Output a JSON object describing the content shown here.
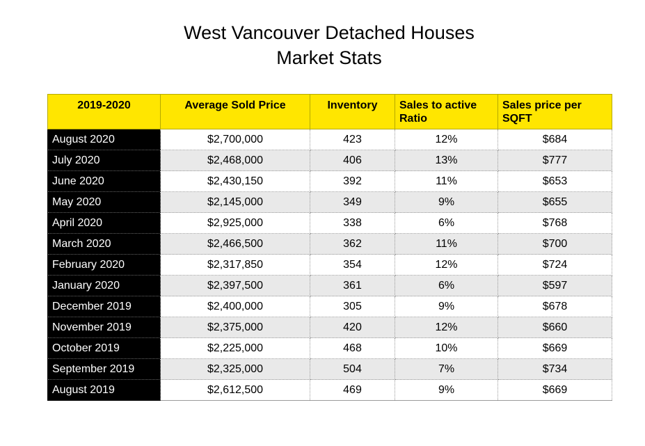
{
  "chart_data": {
    "type": "table",
    "title_line1": "West Vancouver Detached Houses",
    "title_line2": "Market Stats",
    "columns": [
      "2019-2020",
      "Average Sold Price",
      "Inventory",
      "Sales to active Ratio",
      "Sales price per SQFT"
    ],
    "rows": [
      {
        "month": "August 2020",
        "avg_price": "$2,700,000",
        "inventory": "423",
        "ratio": "12%",
        "ppsf": "$684"
      },
      {
        "month": "July 2020",
        "avg_price": "$2,468,000",
        "inventory": "406",
        "ratio": "13%",
        "ppsf": "$777"
      },
      {
        "month": "June 2020",
        "avg_price": "$2,430,150",
        "inventory": "392",
        "ratio": "11%",
        "ppsf": "$653"
      },
      {
        "month": "May 2020",
        "avg_price": "$2,145,000",
        "inventory": "349",
        "ratio": "9%",
        "ppsf": "$655"
      },
      {
        "month": "April 2020",
        "avg_price": "$2,925,000",
        "inventory": "338",
        "ratio": "6%",
        "ppsf": "$768"
      },
      {
        "month": "March 2020",
        "avg_price": "$2,466,500",
        "inventory": "362",
        "ratio": "11%",
        "ppsf": "$700"
      },
      {
        "month": "February 2020",
        "avg_price": "$2,317,850",
        "inventory": "354",
        "ratio": "12%",
        "ppsf": "$724"
      },
      {
        "month": "January 2020",
        "avg_price": "$2,397,500",
        "inventory": "361",
        "ratio": "6%",
        "ppsf": "$597"
      },
      {
        "month": "December 2019",
        "avg_price": "$2,400,000",
        "inventory": "305",
        "ratio": "9%",
        "ppsf": "$678"
      },
      {
        "month": "November 2019",
        "avg_price": "$2,375,000",
        "inventory": "420",
        "ratio": "12%",
        "ppsf": "$660"
      },
      {
        "month": "October 2019",
        "avg_price": "$2,225,000",
        "inventory": "468",
        "ratio": "10%",
        "ppsf": "$669"
      },
      {
        "month": "September 2019",
        "avg_price": "$2,325,000",
        "inventory": "504",
        "ratio": "7%",
        "ppsf": "$734"
      },
      {
        "month": "August 2019",
        "avg_price": "$2,612,500",
        "inventory": "469",
        "ratio": "9%",
        "ppsf": "$669"
      }
    ]
  },
  "colors": {
    "header_bg": "#ffe600",
    "month_bg": "#000000",
    "month_text": "#ffffff",
    "stripe_bg": "#e9e9e9"
  }
}
